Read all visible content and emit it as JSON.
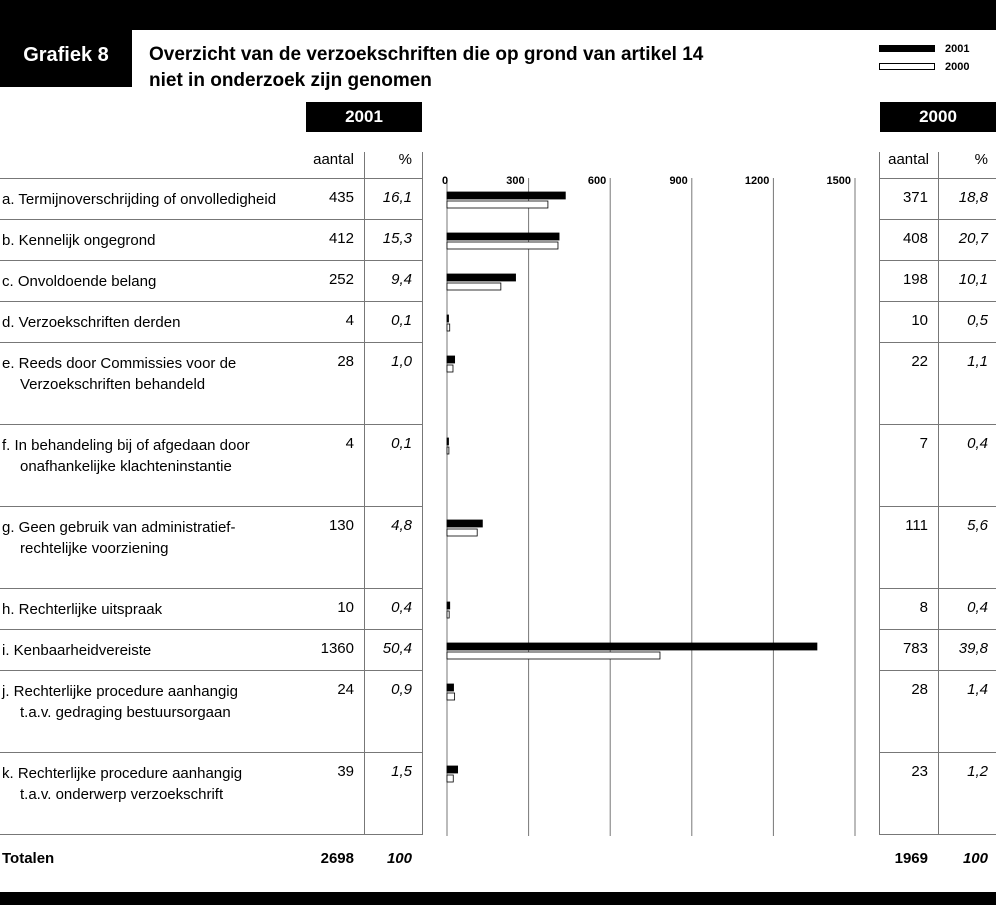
{
  "header": {
    "figure_label": "Grafiek 8",
    "title_line1": "Overzicht van de verzoekschriften die op grond van artikel 14",
    "title_line2": "niet in onderzoek zijn genomen"
  },
  "legend": {
    "items": [
      "2001",
      "2000"
    ]
  },
  "year_boxes": {
    "left": "2001",
    "right": "2000"
  },
  "columns": {
    "count": "aantal",
    "percent": "%"
  },
  "rows": [
    {
      "label": [
        "a.  Termijnoverschrijding of onvolledigheid"
      ],
      "v2001": "435",
      "p2001": "16,1",
      "v2000": "371",
      "p2000": "18,8"
    },
    {
      "label": [
        "b.  Kennelijk ongegrond"
      ],
      "v2001": "412",
      "p2001": "15,3",
      "v2000": "408",
      "p2000": "20,7"
    },
    {
      "label": [
        "c.  Onvoldoende belang"
      ],
      "v2001": "252",
      "p2001": "9,4",
      "v2000": "198",
      "p2000": "10,1"
    },
    {
      "label": [
        "d.  Verzoekschriften derden"
      ],
      "v2001": "4",
      "p2001": "0,1",
      "v2000": "10",
      "p2000": "0,5"
    },
    {
      "label": [
        "e.  Reeds door Commissies voor de",
        "Verzoekschriften behandeld"
      ],
      "v2001": "28",
      "p2001": "1,0",
      "v2000": "22",
      "p2000": "1,1"
    },
    {
      "label": [
        "f.  In behandeling bij of afgedaan door",
        "onafhankelijke klachteninstantie"
      ],
      "v2001": "4",
      "p2001": "0,1",
      "v2000": "7",
      "p2000": "0,4"
    },
    {
      "label": [
        "g.  Geen gebruik van administratief-",
        "rechtelijke voorziening"
      ],
      "v2001": "130",
      "p2001": "4,8",
      "v2000": "111",
      "p2000": "5,6"
    },
    {
      "label": [
        "h.  Rechterlijke uitspraak"
      ],
      "v2001": "10",
      "p2001": "0,4",
      "v2000": "8",
      "p2000": "0,4"
    },
    {
      "label": [
        "i.  Kenbaarheidvereiste"
      ],
      "v2001": "1360",
      "p2001": "50,4",
      "v2000": "783",
      "p2000": "39,8"
    },
    {
      "label": [
        "j.  Rechterlijke procedure aanhangig",
        "t.a.v. gedraging bestuursorgaan"
      ],
      "v2001": "24",
      "p2001": "0,9",
      "v2000": "28",
      "p2000": "1,4"
    },
    {
      "label": [
        "k.  Rechterlijke procedure aanhangig",
        "t.a.v. onderwerp verzoekschrift"
      ],
      "v2001": "39",
      "p2001": "1,5",
      "v2000": "23",
      "p2000": "1,2"
    }
  ],
  "totals": {
    "label": "Totalen",
    "v2001": "2698",
    "p2001": "100",
    "v2000": "1969",
    "p2000": "100"
  },
  "chart_data": {
    "type": "bar",
    "orientation": "horizontal",
    "categories": [
      "a",
      "b",
      "c",
      "d",
      "e",
      "f",
      "g",
      "h",
      "i",
      "j",
      "k"
    ],
    "series": [
      {
        "name": "2001",
        "values": [
          435,
          412,
          252,
          4,
          28,
          4,
          130,
          10,
          1360,
          24,
          39
        ],
        "color": "#000000"
      },
      {
        "name": "2000",
        "values": [
          371,
          408,
          198,
          10,
          22,
          7,
          111,
          8,
          783,
          28,
          23
        ],
        "color": "#ffffff"
      }
    ],
    "ticks": [
      "0",
      "300",
      "600",
      "900",
      "1200",
      "1500"
    ],
    "xlim": [
      0,
      1500
    ],
    "grid": true
  }
}
